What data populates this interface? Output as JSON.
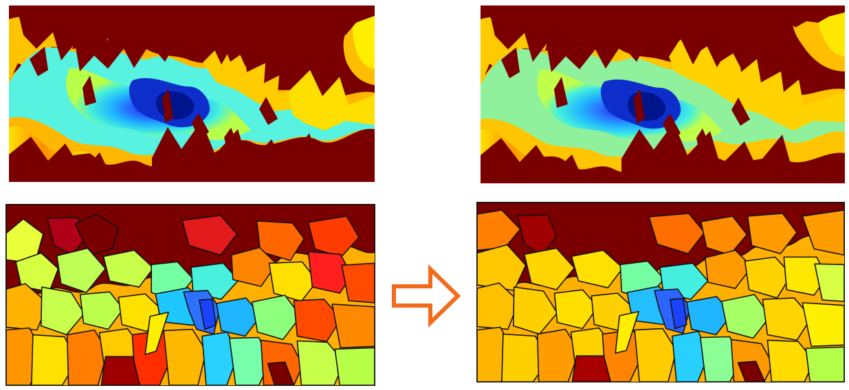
{
  "figure": {
    "panels": [
      {
        "id": "top-left",
        "kind": "heatmap",
        "alt": ""
      },
      {
        "id": "top-right",
        "kind": "heatmap",
        "alt": ""
      },
      {
        "id": "bottom-left",
        "kind": "partition-map",
        "alt": ""
      },
      {
        "id": "bottom-right",
        "kind": "partition-map",
        "alt": ""
      }
    ],
    "arrow": {
      "direction": "right",
      "color": "#f26b1d"
    }
  },
  "colors": {
    "dark_red": "#7a0000",
    "red": "#d7191c",
    "orange": "#ff7f00",
    "yellow": "#ffd300",
    "lime": "#b8ff4a",
    "cyan": "#2ee6d6",
    "light_blue": "#20a7ff",
    "blue": "#1d4eff",
    "dark_blue": "#0016a8",
    "outline": "#111111"
  }
}
